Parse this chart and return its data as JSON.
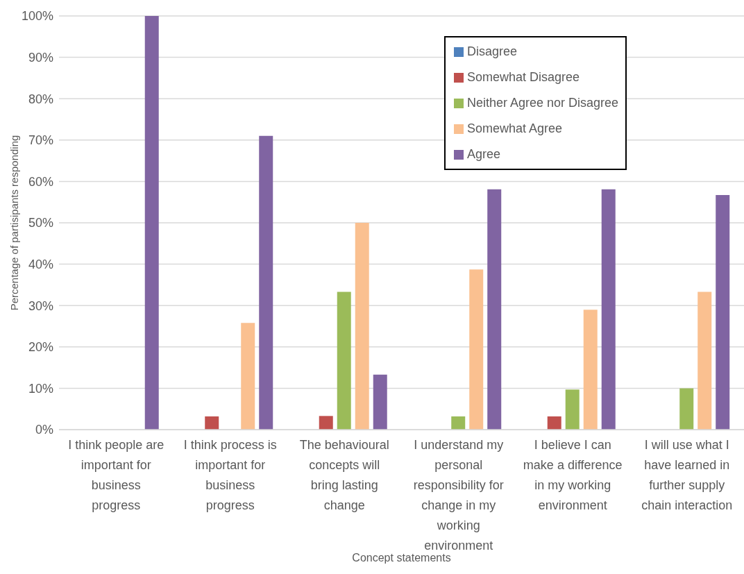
{
  "chart_data": {
    "type": "bar",
    "xlabel": "Concept statements",
    "ylabel": "Percentage of partisipants responding",
    "categories": [
      "I think people are important for business progress",
      "I think process is important for business progress",
      "The behavioural concepts will bring lasting change",
      "I understand my personal responsibility for change in my working environment",
      "I believe I can make a difference in my working environment",
      "I will use what I have learned in further supply chain interaction"
    ],
    "series": [
      {
        "name": "Disagree",
        "color": "#4f81bd",
        "values": [
          0,
          0,
          0,
          0,
          0,
          0
        ]
      },
      {
        "name": "Somewhat Disagree",
        "color": "#c0504d",
        "values": [
          0,
          3.2,
          3.3,
          0,
          3.2,
          0
        ]
      },
      {
        "name": "Neither Agree nor Disagree",
        "color": "#9bbb59",
        "values": [
          0,
          0,
          33.3,
          3.2,
          9.7,
          10
        ]
      },
      {
        "name": "Somewhat Agree",
        "color": "#fac090",
        "values": [
          0,
          25.8,
          50,
          38.7,
          29,
          33.3
        ]
      },
      {
        "name": "Agree",
        "color": "#8064a2",
        "values": [
          100,
          71,
          13.3,
          58.1,
          58.1,
          56.7
        ]
      }
    ],
    "ylim": [
      0,
      100
    ],
    "yticks": [
      {
        "value": 0,
        "label": "0%"
      },
      {
        "value": 10,
        "label": "10%"
      },
      {
        "value": 20,
        "label": "20%"
      },
      {
        "value": 30,
        "label": "30%"
      },
      {
        "value": 40,
        "label": "40%"
      },
      {
        "value": 50,
        "label": "50%"
      },
      {
        "value": 60,
        "label": "60%"
      },
      {
        "value": 70,
        "label": "70%"
      },
      {
        "value": 80,
        "label": "80%"
      },
      {
        "value": 90,
        "label": "90%"
      },
      {
        "value": 100,
        "label": "100%"
      }
    ],
    "grid": "y",
    "legend": "top right"
  }
}
